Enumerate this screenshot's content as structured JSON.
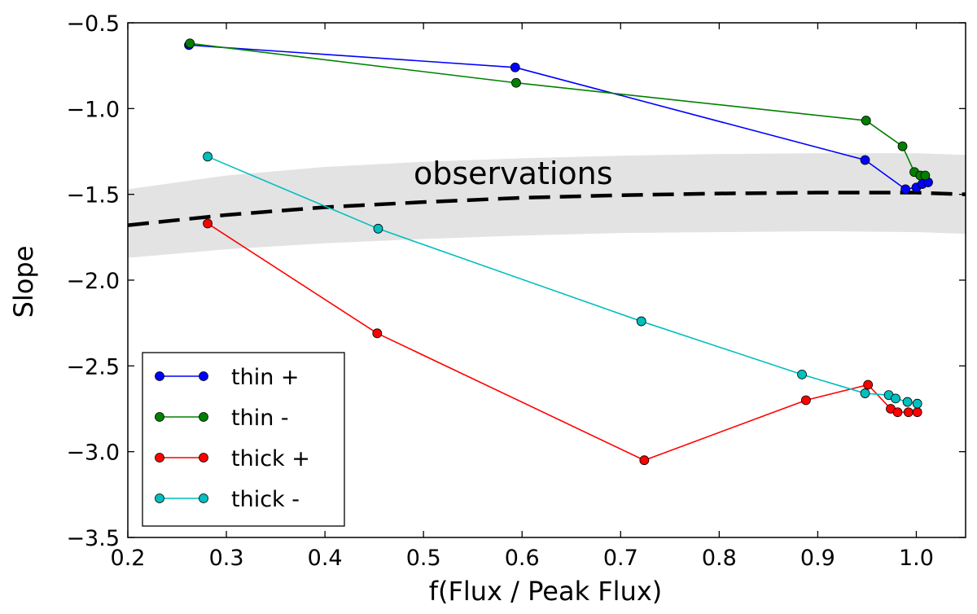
{
  "chart_data": {
    "type": "line",
    "title": "",
    "xlabel": "f(Flux / Peak Flux)",
    "ylabel": "Slope",
    "xlim": [
      0.2,
      1.05
    ],
    "ylim": [
      -3.5,
      -0.5
    ],
    "xticks": [
      0.2,
      0.3,
      0.4,
      0.5,
      0.6,
      0.7,
      0.8,
      0.9,
      1.0
    ],
    "xtick_labels": [
      "0.2",
      "0.3",
      "0.4",
      "0.5",
      "0.6",
      "0.7",
      "0.8",
      "0.9",
      "1.0"
    ],
    "yticks": [
      -3.5,
      -3.0,
      -2.5,
      -2.0,
      -1.5,
      -1.0,
      -0.5
    ],
    "ytick_labels": [
      "−3.5",
      "−3.0",
      "−2.5",
      "−2.0",
      "−1.5",
      "−1.0",
      "−0.5"
    ],
    "grid": false,
    "legend_position": "lower-left",
    "series": [
      {
        "name": "thin +",
        "color": "#0000ff",
        "x": [
          0.262,
          0.593,
          0.948,
          0.989,
          1.0,
          1.006,
          1.012
        ],
        "y": [
          -0.63,
          -0.76,
          -1.3,
          -1.47,
          -1.46,
          -1.44,
          -1.43
        ]
      },
      {
        "name": "thin -",
        "color": "#008000",
        "x": [
          0.263,
          0.594,
          0.949,
          0.986,
          0.998,
          1.004,
          1.009
        ],
        "y": [
          -0.62,
          -0.85,
          -1.07,
          -1.22,
          -1.37,
          -1.39,
          -1.39
        ]
      },
      {
        "name": "thick +",
        "color": "#ff0000",
        "x": [
          0.281,
          0.453,
          0.724,
          0.888,
          0.951,
          0.974,
          0.981,
          0.992,
          1.001
        ],
        "y": [
          -1.67,
          -2.31,
          -3.05,
          -2.7,
          -2.61,
          -2.75,
          -2.77,
          -2.77,
          -2.77
        ]
      },
      {
        "name": "thick -",
        "color": "#00bfbf",
        "x": [
          0.281,
          0.454,
          0.721,
          0.884,
          0.948,
          0.972,
          0.979,
          0.991,
          1.001
        ],
        "y": [
          -1.28,
          -1.7,
          -2.24,
          -2.55,
          -2.66,
          -2.67,
          -2.69,
          -2.71,
          -2.72
        ]
      }
    ],
    "observations": {
      "label": "observations",
      "color": "#000000",
      "band_color": "#e3e3e3",
      "x": [
        0.2,
        0.3,
        0.4,
        0.5,
        0.6,
        0.7,
        0.8,
        0.9,
        1.0,
        1.05
      ],
      "y": [
        -1.68,
        -1.62,
        -1.575,
        -1.545,
        -1.52,
        -1.505,
        -1.495,
        -1.49,
        -1.49,
        -1.5
      ],
      "band_upper": [
        -1.47,
        -1.39,
        -1.34,
        -1.31,
        -1.29,
        -1.275,
        -1.265,
        -1.26,
        -1.26,
        -1.27
      ],
      "band_lower": [
        -1.87,
        -1.82,
        -1.785,
        -1.76,
        -1.74,
        -1.725,
        -1.72,
        -1.715,
        -1.72,
        -1.73
      ]
    }
  }
}
